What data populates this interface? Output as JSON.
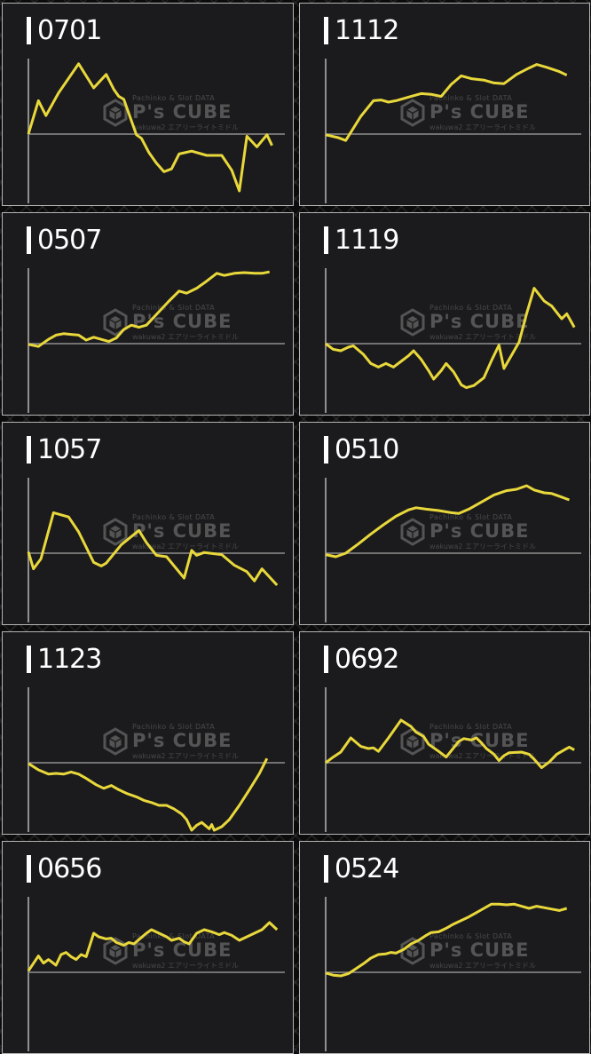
{
  "watermark": {
    "top_text": "Pachinko & Slot DATA",
    "brand": "P's CUBE",
    "sub_text": "wakuwa2 エアリーライトミドル"
  },
  "colors": {
    "line": "#e9d83b",
    "axis": "#8f8f8f",
    "panel_bg": "#1b1b1d",
    "panel_border": "#b5b5b5",
    "label_text": "#ffffff",
    "watermark_gray": "#585858",
    "page_bg": "#0b0b0b"
  },
  "grid": {
    "columns": 2,
    "rows": 5
  },
  "chart_data": [
    {
      "id": "0701",
      "type": "line",
      "y_unit": "normalized slump (-1..1, baseline 0, unlabeled axes)",
      "points": [
        [
          0,
          0
        ],
        [
          0.04,
          0.47
        ],
        [
          0.07,
          0.26
        ],
        [
          0.12,
          0.58
        ],
        [
          0.2,
          0.99
        ],
        [
          0.26,
          0.65
        ],
        [
          0.31,
          0.84
        ],
        [
          0.34,
          0.63
        ],
        [
          0.36,
          0.53
        ],
        [
          0.38,
          0.49
        ],
        [
          0.43,
          -0.01
        ],
        [
          0.45,
          -0.06
        ],
        [
          0.48,
          -0.26
        ],
        [
          0.51,
          -0.41
        ],
        [
          0.54,
          -0.53
        ],
        [
          0.57,
          -0.49
        ],
        [
          0.6,
          -0.28
        ],
        [
          0.65,
          -0.24
        ],
        [
          0.71,
          -0.3
        ],
        [
          0.77,
          -0.3
        ],
        [
          0.81,
          -0.51
        ],
        [
          0.84,
          -0.8
        ],
        [
          0.87,
          -0.03
        ],
        [
          0.91,
          -0.18
        ],
        [
          0.95,
          -0.01
        ],
        [
          0.97,
          -0.16
        ]
      ]
    },
    {
      "id": "1112",
      "type": "line",
      "y_unit": "normalized slump (-1..1, baseline 0, unlabeled axes)",
      "points": [
        [
          0,
          -0.01
        ],
        [
          0.05,
          -0.05
        ],
        [
          0.08,
          -0.09
        ],
        [
          0.14,
          0.25
        ],
        [
          0.19,
          0.47
        ],
        [
          0.22,
          0.48
        ],
        [
          0.25,
          0.45
        ],
        [
          0.28,
          0.47
        ],
        [
          0.34,
          0.53
        ],
        [
          0.38,
          0.57
        ],
        [
          0.42,
          0.56
        ],
        [
          0.46,
          0.53
        ],
        [
          0.5,
          0.7
        ],
        [
          0.54,
          0.82
        ],
        [
          0.58,
          0.78
        ],
        [
          0.63,
          0.76
        ],
        [
          0.67,
          0.72
        ],
        [
          0.71,
          0.71
        ],
        [
          0.76,
          0.84
        ],
        [
          0.81,
          0.93
        ],
        [
          0.84,
          0.98
        ],
        [
          0.88,
          0.94
        ],
        [
          0.93,
          0.88
        ],
        [
          0.96,
          0.83
        ]
      ]
    },
    {
      "id": "0507",
      "type": "line",
      "y_unit": "normalized slump (-1..1, baseline 0, unlabeled axes)",
      "points": [
        [
          0,
          -0.01
        ],
        [
          0.04,
          -0.04
        ],
        [
          0.08,
          0.06
        ],
        [
          0.11,
          0.12
        ],
        [
          0.14,
          0.14
        ],
        [
          0.17,
          0.13
        ],
        [
          0.2,
          0.12
        ],
        [
          0.23,
          0.05
        ],
        [
          0.26,
          0.09
        ],
        [
          0.29,
          0.06
        ],
        [
          0.32,
          0.03
        ],
        [
          0.35,
          0.08
        ],
        [
          0.38,
          0.2
        ],
        [
          0.41,
          0.26
        ],
        [
          0.44,
          0.23
        ],
        [
          0.47,
          0.26
        ],
        [
          0.52,
          0.45
        ],
        [
          0.56,
          0.6
        ],
        [
          0.6,
          0.74
        ],
        [
          0.63,
          0.71
        ],
        [
          0.67,
          0.78
        ],
        [
          0.71,
          0.88
        ],
        [
          0.75,
          0.99
        ],
        [
          0.78,
          0.96
        ],
        [
          0.82,
          0.99
        ],
        [
          0.86,
          1.0
        ],
        [
          0.9,
          0.99
        ],
        [
          0.93,
          0.99
        ],
        [
          0.96,
          1.01
        ]
      ]
    },
    {
      "id": "1119",
      "type": "line",
      "y_unit": "normalized slump (-1..1, baseline 0, unlabeled axes)",
      "points": [
        [
          0,
          0
        ],
        [
          0.03,
          -0.08
        ],
        [
          0.06,
          -0.1
        ],
        [
          0.09,
          -0.05
        ],
        [
          0.11,
          -0.03
        ],
        [
          0.15,
          -0.15
        ],
        [
          0.18,
          -0.28
        ],
        [
          0.21,
          -0.33
        ],
        [
          0.24,
          -0.28
        ],
        [
          0.27,
          -0.33
        ],
        [
          0.3,
          -0.25
        ],
        [
          0.33,
          -0.17
        ],
        [
          0.35,
          -0.1
        ],
        [
          0.38,
          -0.22
        ],
        [
          0.41,
          -0.38
        ],
        [
          0.43,
          -0.5
        ],
        [
          0.46,
          -0.38
        ],
        [
          0.48,
          -0.28
        ],
        [
          0.51,
          -0.4
        ],
        [
          0.54,
          -0.58
        ],
        [
          0.56,
          -0.62
        ],
        [
          0.59,
          -0.59
        ],
        [
          0.63,
          -0.48
        ],
        [
          0.66,
          -0.24
        ],
        [
          0.69,
          -0.02
        ],
        [
          0.71,
          -0.35
        ],
        [
          0.77,
          0.02
        ],
        [
          0.8,
          0.42
        ],
        [
          0.83,
          0.78
        ],
        [
          0.87,
          0.6
        ],
        [
          0.9,
          0.53
        ],
        [
          0.94,
          0.35
        ],
        [
          0.96,
          0.42
        ],
        [
          0.99,
          0.23
        ]
      ]
    },
    {
      "id": "1057",
      "type": "line",
      "y_unit": "normalized slump (-1..1, baseline 0, unlabeled axes)",
      "points": [
        [
          0,
          0.02
        ],
        [
          0.02,
          -0.22
        ],
        [
          0.05,
          -0.08
        ],
        [
          0.1,
          0.57
        ],
        [
          0.13,
          0.54
        ],
        [
          0.16,
          0.51
        ],
        [
          0.2,
          0.3
        ],
        [
          0.26,
          -0.13
        ],
        [
          0.29,
          -0.18
        ],
        [
          0.31,
          -0.14
        ],
        [
          0.37,
          0.12
        ],
        [
          0.44,
          0.32
        ],
        [
          0.47,
          0.15
        ],
        [
          0.51,
          -0.03
        ],
        [
          0.55,
          -0.05
        ],
        [
          0.62,
          -0.35
        ],
        [
          0.65,
          0.04
        ],
        [
          0.67,
          -0.03
        ],
        [
          0.7,
          0.01
        ],
        [
          0.77,
          -0.02
        ],
        [
          0.82,
          -0.17
        ],
        [
          0.87,
          -0.26
        ],
        [
          0.9,
          -0.39
        ],
        [
          0.93,
          -0.22
        ],
        [
          0.99,
          -0.45
        ]
      ]
    },
    {
      "id": "0510",
      "type": "line",
      "y_unit": "normalized slump (-1..1, baseline 0, unlabeled axes)",
      "points": [
        [
          0,
          -0.02
        ],
        [
          0.04,
          -0.05
        ],
        [
          0.08,
          0.0
        ],
        [
          0.13,
          0.13
        ],
        [
          0.18,
          0.27
        ],
        [
          0.23,
          0.4
        ],
        [
          0.28,
          0.52
        ],
        [
          0.33,
          0.61
        ],
        [
          0.36,
          0.64
        ],
        [
          0.4,
          0.62
        ],
        [
          0.45,
          0.6
        ],
        [
          0.5,
          0.57
        ],
        [
          0.53,
          0.56
        ],
        [
          0.57,
          0.62
        ],
        [
          0.62,
          0.72
        ],
        [
          0.67,
          0.82
        ],
        [
          0.72,
          0.88
        ],
        [
          0.76,
          0.9
        ],
        [
          0.8,
          0.95
        ],
        [
          0.83,
          0.89
        ],
        [
          0.87,
          0.85
        ],
        [
          0.9,
          0.84
        ],
        [
          0.94,
          0.79
        ],
        [
          0.97,
          0.75
        ]
      ]
    },
    {
      "id": "1123",
      "type": "line",
      "y_unit": "normalized slump (-1..1, baseline 0, unlabeled axes)",
      "points": [
        [
          0,
          -0.01
        ],
        [
          0.04,
          -0.1
        ],
        [
          0.08,
          -0.16
        ],
        [
          0.11,
          -0.15
        ],
        [
          0.14,
          -0.16
        ],
        [
          0.17,
          -0.13
        ],
        [
          0.2,
          -0.16
        ],
        [
          0.23,
          -0.22
        ],
        [
          0.27,
          -0.31
        ],
        [
          0.3,
          -0.36
        ],
        [
          0.33,
          -0.32
        ],
        [
          0.36,
          -0.38
        ],
        [
          0.39,
          -0.43
        ],
        [
          0.43,
          -0.48
        ],
        [
          0.46,
          -0.53
        ],
        [
          0.49,
          -0.56
        ],
        [
          0.52,
          -0.6
        ],
        [
          0.55,
          -0.6
        ],
        [
          0.58,
          -0.65
        ],
        [
          0.61,
          -0.72
        ],
        [
          0.63,
          -0.8
        ],
        [
          0.65,
          -0.95
        ],
        [
          0.67,
          -0.88
        ],
        [
          0.69,
          -0.84
        ],
        [
          0.72,
          -0.93
        ],
        [
          0.73,
          -0.87
        ],
        [
          0.74,
          -0.95
        ],
        [
          0.77,
          -0.9
        ],
        [
          0.8,
          -0.8
        ],
        [
          0.84,
          -0.6
        ],
        [
          0.88,
          -0.38
        ],
        [
          0.92,
          -0.15
        ],
        [
          0.95,
          0.06
        ]
      ]
    },
    {
      "id": "0692",
      "type": "line",
      "y_unit": "normalized slump (-1..1, baseline 0, unlabeled axes)",
      "points": [
        [
          0,
          0
        ],
        [
          0.03,
          0.08
        ],
        [
          0.06,
          0.15
        ],
        [
          0.1,
          0.35
        ],
        [
          0.14,
          0.23
        ],
        [
          0.17,
          0.2
        ],
        [
          0.19,
          0.21
        ],
        [
          0.21,
          0.16
        ],
        [
          0.25,
          0.35
        ],
        [
          0.3,
          0.6
        ],
        [
          0.34,
          0.51
        ],
        [
          0.36,
          0.43
        ],
        [
          0.39,
          0.37
        ],
        [
          0.41,
          0.26
        ],
        [
          0.45,
          0.16
        ],
        [
          0.48,
          0.08
        ],
        [
          0.53,
          0.3
        ],
        [
          0.55,
          0.34
        ],
        [
          0.58,
          0.32
        ],
        [
          0.6,
          0.35
        ],
        [
          0.62,
          0.28
        ],
        [
          0.64,
          0.2
        ],
        [
          0.67,
          0.12
        ],
        [
          0.69,
          0.03
        ],
        [
          0.71,
          0.1
        ],
        [
          0.73,
          0.14
        ],
        [
          0.78,
          0.15
        ],
        [
          0.81,
          0.12
        ],
        [
          0.83,
          0.05
        ],
        [
          0.86,
          -0.07
        ],
        [
          0.89,
          0.01
        ],
        [
          0.92,
          0.12
        ],
        [
          0.95,
          0.18
        ],
        [
          0.97,
          0.22
        ],
        [
          0.99,
          0.18
        ]
      ]
    },
    {
      "id": "0656",
      "type": "line",
      "y_unit": "normalized slump (-1..1, baseline 0, unlabeled axes)",
      "points": [
        [
          0,
          0.02
        ],
        [
          0.04,
          0.23
        ],
        [
          0.06,
          0.13
        ],
        [
          0.08,
          0.18
        ],
        [
          0.11,
          0.1
        ],
        [
          0.13,
          0.25
        ],
        [
          0.15,
          0.28
        ],
        [
          0.17,
          0.22
        ],
        [
          0.19,
          0.18
        ],
        [
          0.21,
          0.25
        ],
        [
          0.23,
          0.22
        ],
        [
          0.26,
          0.55
        ],
        [
          0.28,
          0.5
        ],
        [
          0.31,
          0.47
        ],
        [
          0.33,
          0.48
        ],
        [
          0.35,
          0.42
        ],
        [
          0.38,
          0.38
        ],
        [
          0.4,
          0.42
        ],
        [
          0.42,
          0.4
        ],
        [
          0.44,
          0.46
        ],
        [
          0.47,
          0.55
        ],
        [
          0.49,
          0.6
        ],
        [
          0.52,
          0.55
        ],
        [
          0.55,
          0.5
        ],
        [
          0.57,
          0.45
        ],
        [
          0.6,
          0.48
        ],
        [
          0.62,
          0.43
        ],
        [
          0.64,
          0.4
        ],
        [
          0.67,
          0.55
        ],
        [
          0.7,
          0.6
        ],
        [
          0.73,
          0.57
        ],
        [
          0.76,
          0.53
        ],
        [
          0.78,
          0.56
        ],
        [
          0.81,
          0.52
        ],
        [
          0.84,
          0.45
        ],
        [
          0.87,
          0.5
        ],
        [
          0.9,
          0.55
        ],
        [
          0.93,
          0.6
        ],
        [
          0.96,
          0.7
        ],
        [
          0.99,
          0.6
        ]
      ]
    },
    {
      "id": "0524",
      "type": "line",
      "y_unit": "normalized slump (-1..1, baseline 0, unlabeled axes)",
      "points": [
        [
          0,
          -0.01
        ],
        [
          0.03,
          -0.04
        ],
        [
          0.06,
          -0.05
        ],
        [
          0.09,
          -0.02
        ],
        [
          0.12,
          0.05
        ],
        [
          0.15,
          0.12
        ],
        [
          0.18,
          0.2
        ],
        [
          0.21,
          0.25
        ],
        [
          0.24,
          0.26
        ],
        [
          0.26,
          0.28
        ],
        [
          0.28,
          0.27
        ],
        [
          0.31,
          0.32
        ],
        [
          0.34,
          0.4
        ],
        [
          0.37,
          0.45
        ],
        [
          0.4,
          0.52
        ],
        [
          0.42,
          0.56
        ],
        [
          0.45,
          0.57
        ],
        [
          0.48,
          0.62
        ],
        [
          0.51,
          0.68
        ],
        [
          0.54,
          0.73
        ],
        [
          0.57,
          0.78
        ],
        [
          0.6,
          0.84
        ],
        [
          0.63,
          0.9
        ],
        [
          0.66,
          0.96
        ],
        [
          0.69,
          0.96
        ],
        [
          0.72,
          0.95
        ],
        [
          0.75,
          0.96
        ],
        [
          0.78,
          0.93
        ],
        [
          0.81,
          0.9
        ],
        [
          0.84,
          0.93
        ],
        [
          0.87,
          0.91
        ],
        [
          0.9,
          0.89
        ],
        [
          0.93,
          0.87
        ],
        [
          0.96,
          0.9
        ]
      ]
    }
  ]
}
